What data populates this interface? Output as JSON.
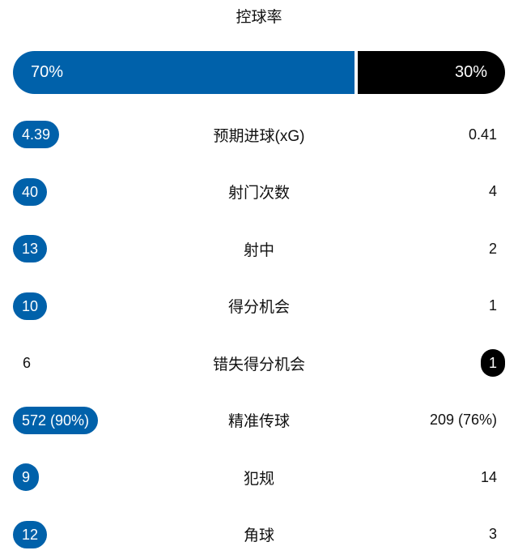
{
  "title": "控球率",
  "possession": {
    "home": "70%",
    "away": "30%",
    "home_fraction": 0.7
  },
  "colors": {
    "home": "#0061aa",
    "away": "#000000"
  },
  "stats": [
    {
      "label": "预期进球(xG)",
      "home": "4.39",
      "away": "0.41",
      "leader": "home"
    },
    {
      "label": "射门次数",
      "home": "40",
      "away": "4",
      "leader": "home"
    },
    {
      "label": "射中",
      "home": "13",
      "away": "2",
      "leader": "home"
    },
    {
      "label": "得分机会",
      "home": "10",
      "away": "1",
      "leader": "home"
    },
    {
      "label": "错失得分机会",
      "home": "6",
      "away": "1",
      "leader": "away"
    },
    {
      "label": "精准传球",
      "home": "572 (90%)",
      "away": "209 (76%)",
      "leader": "home"
    },
    {
      "label": "犯规",
      "home": "9",
      "away": "14",
      "leader": "home"
    },
    {
      "label": "角球",
      "home": "12",
      "away": "3",
      "leader": "home"
    }
  ]
}
